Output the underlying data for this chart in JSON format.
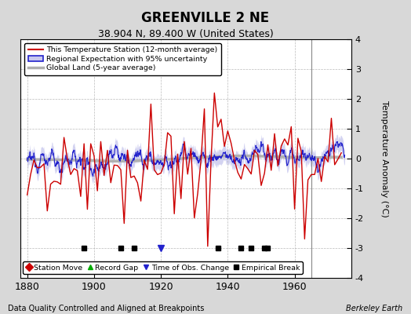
{
  "title": "GREENVILLE 2 NE",
  "subtitle": "38.904 N, 89.400 W (United States)",
  "xlabel_note": "Data Quality Controlled and Aligned at Breakpoints",
  "xlabel_right": "Berkeley Earth",
  "ylabel": "Temperature Anomaly (°C)",
  "ylim": [
    -4,
    4
  ],
  "xlim": [
    1878,
    1977
  ],
  "xticks": [
    1880,
    1900,
    1920,
    1940,
    1960
  ],
  "yticks": [
    -4,
    -3,
    -2,
    -1,
    0,
    1,
    2,
    3,
    4
  ],
  "bg_color": "#d8d8d8",
  "plot_bg_color": "#ffffff",
  "station_moves": [],
  "record_gaps": [],
  "obs_changes": [
    1920
  ],
  "empirical_breaks": [
    1897,
    1908,
    1912,
    1937,
    1944,
    1947,
    1951,
    1952
  ],
  "vert_line_x": 1965,
  "seed": 12345
}
